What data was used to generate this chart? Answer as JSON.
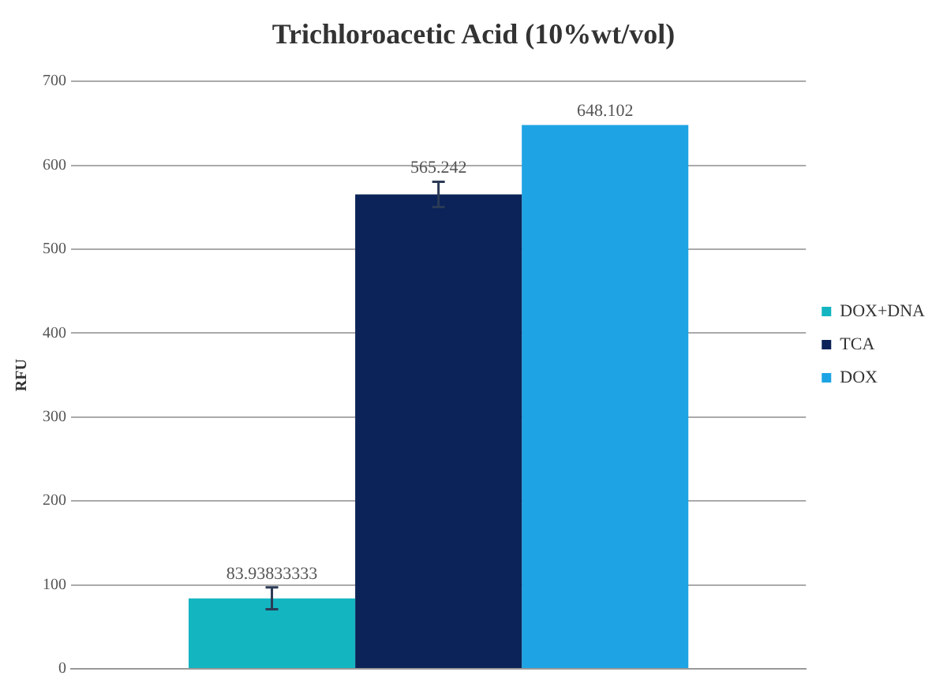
{
  "chart_data": {
    "type": "bar",
    "title": "Trichloroacetic Acid (10%wt/vol)",
    "ylabel": "RFU",
    "categories": [
      null
    ],
    "series": [
      {
        "name": "DOX+DNA",
        "color": "#13b5c1",
        "values": [
          83.93833333
        ],
        "errors": [
          13
        ]
      },
      {
        "name": "TCA",
        "color": "#0b2358",
        "values": [
          565.242
        ],
        "errors": [
          15
        ]
      },
      {
        "name": "DOX",
        "color": "#1ea4e4",
        "values": [
          648.102
        ]
      }
    ],
    "ylim": [
      0,
      700
    ],
    "yticks": [
      0,
      100,
      200,
      300,
      400,
      500,
      600,
      700
    ],
    "grid": "y",
    "legend": "right",
    "data_labels": true
  }
}
